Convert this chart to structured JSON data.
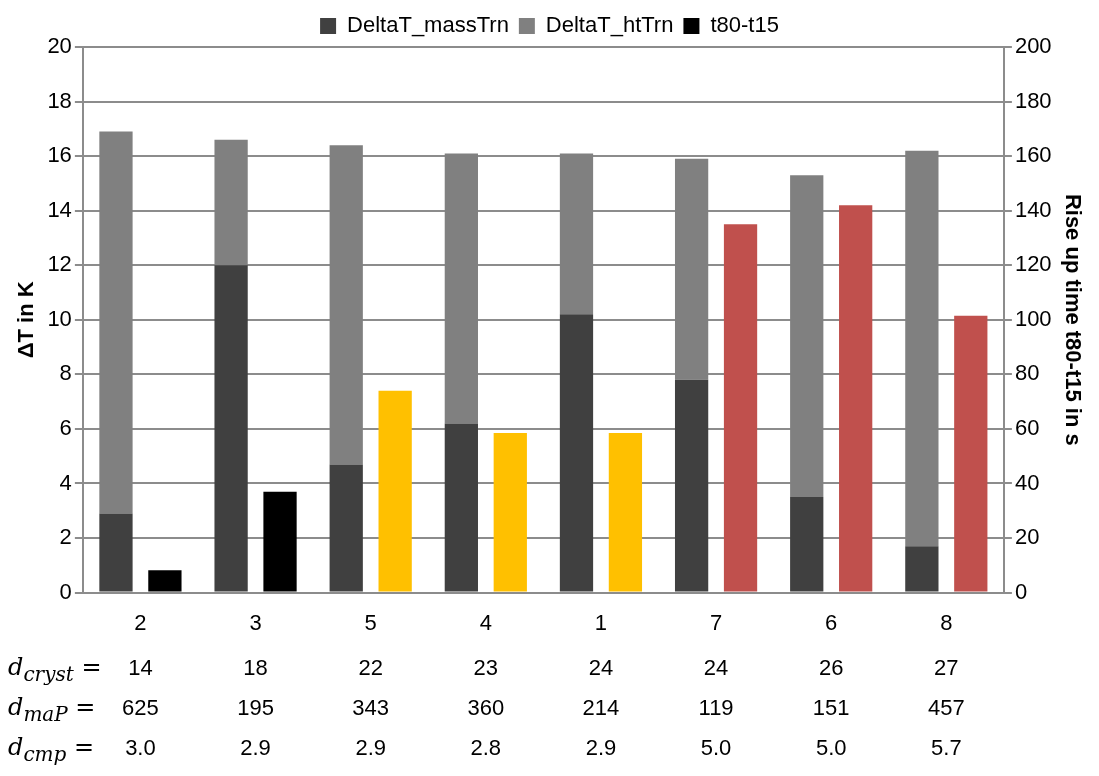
{
  "chart_data": {
    "type": "bar",
    "stacked": true,
    "ylabel": "ΔT in K",
    "y2label": "Rise up time t80-t15 in s",
    "categories": [
      "2",
      "3",
      "5",
      "4",
      "1",
      "7",
      "6",
      "8"
    ],
    "series": [
      {
        "name": "DeltaT_massTrn",
        "color": "#404040",
        "values": [
          2.9,
          12.0,
          4.7,
          6.2,
          10.2,
          7.8,
          3.5,
          1.7
        ]
      },
      {
        "name": "DeltaT_htTrn",
        "color": "#808080",
        "values": [
          14.0,
          4.6,
          11.7,
          9.9,
          5.9,
          8.1,
          11.8,
          14.5
        ]
      },
      {
        "name": "t80-t15",
        "color": "#000000",
        "axis": "y2",
        "colors": [
          "#000000",
          "#000000",
          "#ffc000",
          "#ffc000",
          "#ffc000",
          "#c0504d",
          "#c0504d",
          "#c0504d"
        ],
        "values": [
          8.2,
          37,
          74,
          58.5,
          58.5,
          135,
          142,
          101.5
        ]
      }
    ],
    "ylim": [
      0,
      20
    ],
    "yticks": [
      0,
      2,
      4,
      6,
      8,
      10,
      12,
      14,
      16,
      18,
      20
    ],
    "y2lim": [
      0,
      200
    ],
    "y2ticks": [
      0,
      20,
      40,
      60,
      80,
      100,
      120,
      140,
      160,
      180,
      200
    ],
    "grid": "y",
    "legend": "top",
    "annotations": [
      "d$_{cryst}$ = 14 18 22 23 24 24 26 27",
      "d$_{maP}$ = 625 195 343 360 214 119 151 457",
      "d$_{cmp}$ = 3.0 2.9 2.9 2.8 2.9 5.0 5.0 5.7"
    ]
  }
}
